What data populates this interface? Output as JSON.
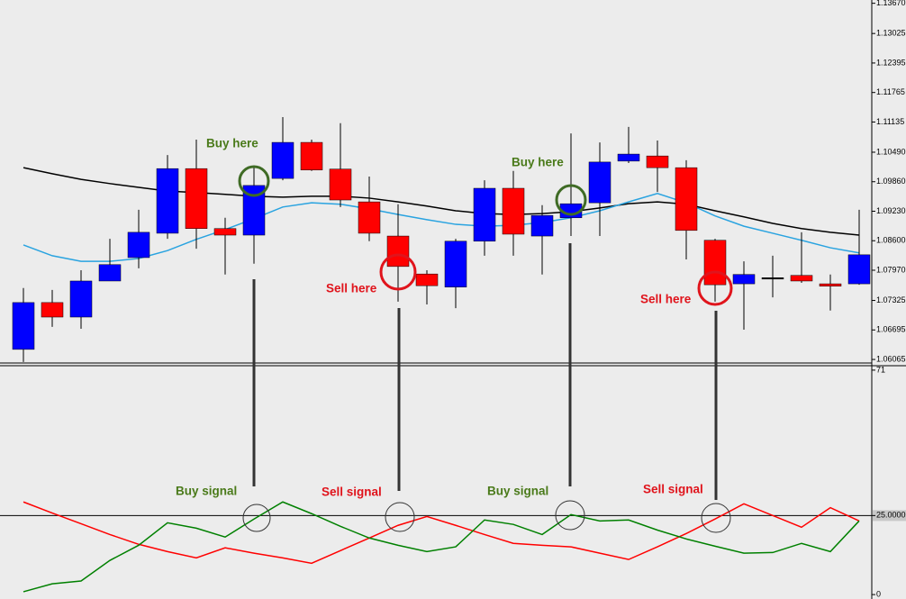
{
  "chart_data": [
    {
      "type": "candlestick",
      "open": [
        1.0628,
        1.0728,
        1.0697,
        1.0774,
        1.0824,
        1.0876,
        1.1014,
        1.0886,
        1.0872,
        1.0993,
        1.107,
        1.1013,
        1.0943,
        1.087,
        1.0789,
        1.0761,
        1.0859,
        1.0972,
        1.087,
        1.0909,
        1.0941,
        1.103,
        1.1041,
        1.1016,
        1.0861,
        1.0768,
        1.0781,
        1.0786,
        1.0768,
        1.0768
      ],
      "high": [
        1.0759,
        1.0755,
        1.0797,
        1.0864,
        1.0926,
        1.1043,
        1.1076,
        1.0909,
        1.1018,
        1.1124,
        1.1076,
        1.1111,
        1.0997,
        1.0938,
        1.0797,
        1.0864,
        1.0989,
        1.1009,
        1.0936,
        1.1089,
        1.107,
        1.1103,
        1.1074,
        1.1032,
        1.0864,
        1.0816,
        1.0828,
        1.0878,
        1.0788,
        1.0926
      ],
      "low": [
        1.0601,
        1.0676,
        1.0672,
        1.0774,
        1.0801,
        1.0864,
        1.0843,
        1.0788,
        1.0811,
        1.0989,
        1.1009,
        1.0932,
        1.0859,
        1.073,
        1.0724,
        1.0716,
        1.0828,
        1.0828,
        1.0788,
        1.087,
        1.087,
        1.1026,
        1.0964,
        1.082,
        1.073,
        1.067,
        1.0739,
        1.077,
        1.0711,
        1.0766
      ],
      "close": [
        1.0728,
        1.0697,
        1.0774,
        1.0809,
        1.0878,
        1.1014,
        1.0886,
        1.0872,
        1.0978,
        1.107,
        1.1011,
        1.0947,
        1.0876,
        1.0805,
        1.0764,
        1.0859,
        1.0972,
        1.0874,
        1.0914,
        1.0939,
        1.1028,
        1.1045,
        1.1016,
        1.0882,
        1.0766,
        1.0788,
        1.0781,
        1.0774,
        1.0763,
        1.083
      ],
      "up_color": "#0000ff",
      "down_color": "#ff0000",
      "doji_color": "#000000",
      "lines": [
        {
          "color": "#000000",
          "values": [
            1.1016,
            1.1003,
            1.0991,
            1.0982,
            1.0974,
            1.0966,
            1.0963,
            1.0959,
            1.0955,
            1.0953,
            1.0955,
            1.0955,
            1.0951,
            1.0943,
            1.0934,
            1.0924,
            1.0918,
            1.0916,
            1.0918,
            1.0922,
            1.093,
            1.0939,
            1.0943,
            1.0938,
            1.0924,
            1.0911,
            1.0897,
            1.0886,
            1.0878,
            1.0872
          ]
        },
        {
          "color": "#29a3e0",
          "values": [
            1.0851,
            1.0828,
            1.0816,
            1.0816,
            1.0822,
            1.0839,
            1.0863,
            1.0884,
            1.0907,
            1.0932,
            1.0941,
            1.0938,
            1.0928,
            1.0916,
            1.0905,
            1.0895,
            1.0891,
            1.0893,
            1.0899,
            1.0909,
            1.0924,
            1.0943,
            1.0961,
            1.0941,
            1.0913,
            1.0891,
            1.0876,
            1.0861,
            1.0845,
            1.0834
          ]
        }
      ],
      "ylim": [
        1.0597,
        1.1374
      ],
      "yticks": [
        {
          "value": 1.1367,
          "label": "1.13670"
        },
        {
          "value": 1.13025,
          "label": "1.13025"
        },
        {
          "value": 1.12395,
          "label": "1.12395"
        },
        {
          "value": 1.11765,
          "label": "1.11765"
        },
        {
          "value": 1.11135,
          "label": "1.11135"
        },
        {
          "value": 1.1049,
          "label": "1.10490"
        },
        {
          "value": 1.0986,
          "label": "1.09860"
        },
        {
          "value": 1.0923,
          "label": "1.09230"
        },
        {
          "value": 1.086,
          "label": "1.08600"
        },
        {
          "value": 1.0797,
          "label": "1.07970"
        },
        {
          "value": 1.07325,
          "label": "1.07325"
        },
        {
          "value": 1.06695,
          "label": "1.06695"
        },
        {
          "value": 1.06065,
          "label": "1.06065"
        }
      ],
      "annotations": [
        "Buy here",
        "Sell here",
        "Buy here",
        "Sell here"
      ]
    },
    {
      "type": "line",
      "series": [
        {
          "color": "#ff0000",
          "values": [
            29.3,
            25.8,
            22.4,
            19.0,
            15.9,
            13.6,
            11.6,
            14.8,
            13.1,
            11.6,
            9.9,
            13.9,
            17.9,
            21.9,
            24.7,
            21.9,
            19.0,
            16.2,
            15.6,
            15.1,
            13.1,
            11.1,
            15.1,
            19.3,
            23.9,
            28.7,
            25.0,
            21.3,
            27.5,
            23.3
          ]
        },
        {
          "color": "#008000",
          "values": [
            0.9,
            3.4,
            4.3,
            10.8,
            15.6,
            22.7,
            21.0,
            18.2,
            23.9,
            29.3,
            25.6,
            21.6,
            17.9,
            15.6,
            13.6,
            15.1,
            23.6,
            22.2,
            19.0,
            25.3,
            23.3,
            23.6,
            20.4,
            17.6,
            15.3,
            13.1,
            13.3,
            16.2,
            13.6,
            23.3
          ]
        }
      ],
      "ylim": [
        -1.4,
        72.4
      ],
      "yticks": [
        71,
        {
          "value": 25,
          "label": "25.0000"
        },
        0
      ],
      "level": 25,
      "annotations": [
        "Buy signal",
        "Sell signal",
        "Buy signal",
        "Sell signal"
      ]
    }
  ]
}
